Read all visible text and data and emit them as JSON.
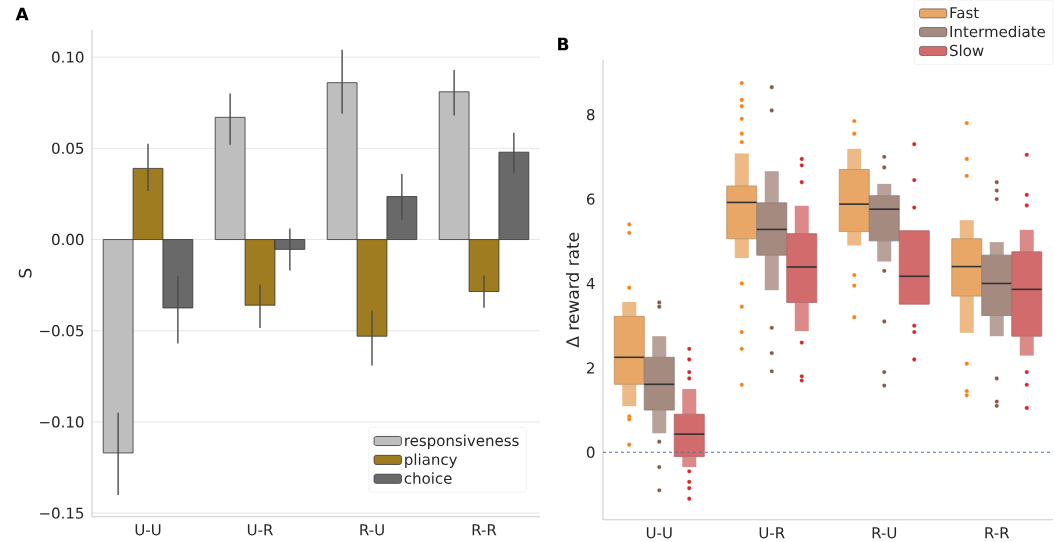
{
  "chart_data": [
    {
      "type": "bar",
      "title": "A",
      "ylabel": "S",
      "categories": [
        "U-U",
        "U-R",
        "R-U",
        "R-R"
      ],
      "series": [
        {
          "name": "responsiveness",
          "color": "#bebebe",
          "values": [
            -0.117,
            0.067,
            0.086,
            0.081
          ],
          "errors": [
            [
              -0.14,
              -0.095
            ],
            [
              0.052,
              0.08
            ],
            [
              0.069,
              0.104
            ],
            [
              0.068,
              0.093
            ]
          ]
        },
        {
          "name": "pliancy",
          "color": "#a07c20",
          "values": [
            0.039,
            -0.036,
            -0.053,
            -0.0285
          ],
          "errors": [
            [
              0.0266,
              0.0525
            ],
            [
              -0.0485,
              -0.0247
            ],
            [
              -0.069,
              -0.039
            ],
            [
              -0.0374,
              -0.0197
            ]
          ]
        },
        {
          "name": "choice",
          "color": "#696969",
          "values": [
            -0.0375,
            -0.0054,
            0.0236,
            0.0479
          ],
          "errors": [
            [
              -0.057,
              -0.02
            ],
            [
              -0.017,
              0.006
            ],
            [
              0.011,
              0.036
            ],
            [
              0.0364,
              0.0586
            ]
          ]
        }
      ],
      "ylim": [
        -0.152,
        0.115
      ],
      "yticks": [
        {
          "value": -0.15,
          "label": "−0.15"
        },
        {
          "value": -0.1,
          "label": "−0.10"
        },
        {
          "value": -0.05,
          "label": "−0.05"
        },
        {
          "value": 0,
          "label": "0.00"
        },
        {
          "value": 0.05,
          "label": "0.05"
        },
        {
          "value": 0.1,
          "label": "0.10"
        }
      ],
      "grid": "y",
      "legend": "bottom right"
    },
    {
      "type": "box",
      "title": "B",
      "ylabel": "Δ reward rate",
      "categories": [
        "U-U",
        "U-R",
        "R-U",
        "R-R"
      ],
      "series": [
        {
          "name": "Fast",
          "color": "#e8a766",
          "boxes": [
            {
              "low": 1.09,
              "q1": 1.61,
              "median": 2.25,
              "q3": 3.22,
              "high": 3.56
            },
            {
              "low": 4.6,
              "q1": 5.06,
              "median": 5.92,
              "q3": 6.31,
              "high": 7.08
            },
            {
              "low": 4.9,
              "q1": 5.23,
              "median": 5.88,
              "q3": 6.7,
              "high": 7.19
            },
            {
              "low": 2.83,
              "q1": 3.7,
              "median": 4.4,
              "q3": 5.06,
              "high": 5.5
            }
          ]
        },
        {
          "name": "Intermediate",
          "color": "#a58a80",
          "boxes": [
            {
              "low": 0.45,
              "q1": 1.0,
              "median": 1.61,
              "q3": 2.25,
              "high": 2.75
            },
            {
              "low": 3.84,
              "q1": 4.67,
              "median": 5.28,
              "q3": 5.91,
              "high": 6.66
            },
            {
              "low": 4.52,
              "q1": 5.01,
              "median": 5.76,
              "q3": 6.08,
              "high": 6.36
            },
            {
              "low": 2.75,
              "q1": 3.24,
              "median": 4.0,
              "q3": 4.67,
              "high": 4.98
            }
          ]
        },
        {
          "name": "Slow",
          "color": "#d26b6b",
          "boxes": [
            {
              "low": -0.35,
              "q1": -0.1,
              "median": 0.43,
              "q3": 0.9,
              "high": 1.5
            },
            {
              "low": 2.87,
              "q1": 3.55,
              "median": 4.39,
              "q3": 5.18,
              "high": 5.84
            },
            {
              "low": 3.51,
              "q1": 3.51,
              "median": 4.17,
              "q3": 5.25,
              "high": 5.25
            },
            {
              "low": 2.29,
              "q1": 2.75,
              "median": 3.86,
              "q3": 4.75,
              "high": 5.27
            }
          ]
        },
        {
          "type": "scatter",
          "color": "#ff7f0e",
          "x": [
            "U-U",
            "U-U",
            "U-U",
            "U-U",
            "U-U",
            "U-U",
            "U-R",
            "U-R",
            "U-R",
            "U-R",
            "U-R",
            "U-R",
            "U-R",
            "U-R",
            "U-R",
            "U-R",
            "U-R",
            "R-U",
            "R-U",
            "R-U",
            "R-U",
            "R-U",
            "R-R",
            "R-R",
            "R-R",
            "R-R",
            "R-R",
            "R-R"
          ],
          "values": [
            5.4,
            5.2,
            3.9,
            0.85,
            0.78,
            0.18,
            8.75,
            8.35,
            8.2,
            7.9,
            7.55,
            7.35,
            4.0,
            3.45,
            2.85,
            2.45,
            1.6,
            7.85,
            7.55,
            4.2,
            3.95,
            3.2,
            7.8,
            6.95,
            6.55,
            2.1,
            1.45,
            1.35
          ]
        },
        {
          "type": "scatter",
          "color": "#8c564b",
          "x": [
            "U-U",
            "U-U",
            "U-U",
            "U-U",
            "U-U",
            "U-R",
            "U-R",
            "U-R",
            "U-R",
            "U-R",
            "R-U",
            "R-U",
            "R-U",
            "R-U",
            "R-U",
            "R-U",
            "R-R",
            "R-R",
            "R-R",
            "R-R",
            "R-R",
            "R-R"
          ],
          "values": [
            3.55,
            3.45,
            0.25,
            -0.35,
            -0.9,
            8.65,
            8.1,
            2.95,
            2.35,
            1.92,
            7.0,
            6.75,
            4.3,
            3.1,
            1.9,
            1.58,
            6.4,
            6.2,
            6.0,
            1.75,
            1.2,
            1.1
          ]
        },
        {
          "type": "scatter",
          "color": "#d62728",
          "x": [
            "U-U",
            "U-U",
            "U-U",
            "U-U",
            "U-U",
            "U-U",
            "U-U",
            "U-U",
            "U-R",
            "U-R",
            "U-R",
            "U-R",
            "U-R",
            "U-R",
            "R-U",
            "R-U",
            "R-U",
            "R-U",
            "R-U",
            "R-U",
            "R-R",
            "R-R",
            "R-R",
            "R-R",
            "R-R",
            "R-R"
          ],
          "values": [
            2.45,
            2.2,
            1.9,
            1.75,
            -0.45,
            -0.7,
            -0.85,
            -1.1,
            6.95,
            6.8,
            6.4,
            2.6,
            1.8,
            1.7,
            7.3,
            6.45,
            5.8,
            3.0,
            2.85,
            2.2,
            7.05,
            6.1,
            5.85,
            1.9,
            1.6,
            1.05
          ]
        }
      ],
      "marker": "circle",
      "ylim": [
        -1.6,
        9.3
      ],
      "yticks": [
        0,
        2,
        4,
        6,
        8
      ],
      "ref_lines": [
        {
          "axis": "y",
          "value": 0,
          "color": "#4c72b0",
          "line_style": "dashed"
        }
      ],
      "legend": "top right"
    }
  ]
}
